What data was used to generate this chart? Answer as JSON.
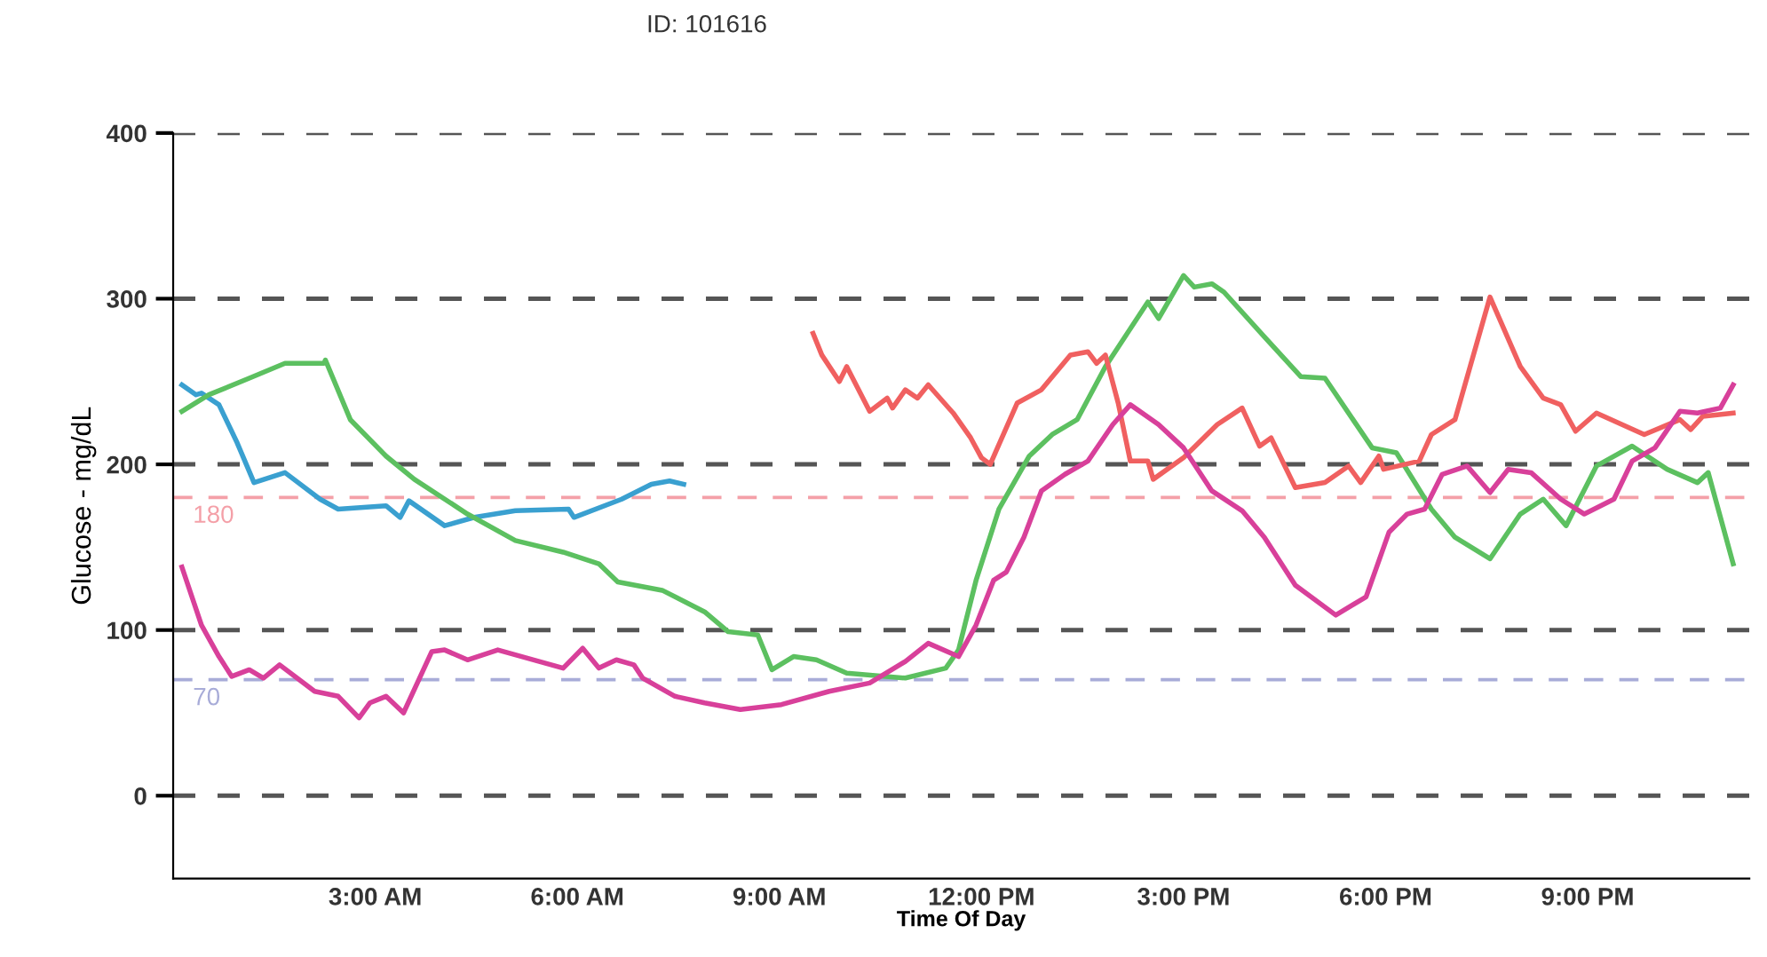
{
  "chart_data": {
    "type": "line",
    "xlabel": "Time Of Day",
    "ylabel": "Glucose - mg/dL",
    "annotations": [
      "ID: 101616"
    ],
    "xlim": [
      0,
      23.4
    ],
    "ylim": [
      -50,
      400
    ],
    "xticks": [
      {
        "value": 3,
        "label": "3:00 AM"
      },
      {
        "value": 6,
        "label": "6:00 AM"
      },
      {
        "value": 9,
        "label": "9:00 AM"
      },
      {
        "value": 12,
        "label": "12:00 PM"
      },
      {
        "value": 15,
        "label": "3:00 PM"
      },
      {
        "value": 18,
        "label": "6:00 PM"
      },
      {
        "value": 21,
        "label": "9:00 PM"
      }
    ],
    "yticks": [
      0,
      100,
      200,
      300,
      400
    ],
    "grid": "y",
    "legend": false,
    "marker": "none",
    "line_style": "solid",
    "ref_lines": [
      {
        "axis": "y",
        "value": 180,
        "label": "180",
        "color": "#f4a0a8",
        "line_style": "dashed"
      },
      {
        "axis": "y",
        "value": 70,
        "label": "70",
        "color": "#a8acd8",
        "line_style": "dashed"
      }
    ],
    "series": [
      {
        "color": "#3aa0d0",
        "x": [
          0.13,
          0.34,
          0.42,
          0.68,
          0.95,
          1.2,
          1.66,
          2.18,
          2.45,
          3.16,
          3.37,
          3.5,
          4.03,
          4.47,
          5.08,
          5.87,
          5.95,
          6.66,
          7.1,
          7.37,
          7.58
        ],
        "values": [
          248,
          242,
          243,
          236,
          213,
          189,
          195,
          179,
          173,
          175,
          168,
          178,
          163,
          168,
          172,
          173,
          168,
          179,
          188,
          190,
          188
        ]
      },
      {
        "color": "#5cc060",
        "x": [
          0.13,
          0.53,
          1.13,
          1.66,
          2.24,
          2.26,
          2.63,
          3.16,
          3.58,
          4.37,
          5.08,
          5.79,
          6.32,
          6.6,
          7.26,
          7.89,
          8.24,
          8.68,
          8.89,
          9.21,
          9.55,
          10.0,
          10.87,
          11.47,
          11.66,
          11.92,
          12.26,
          12.71,
          13.05,
          13.42,
          13.84,
          14.47,
          14.63,
          15.0,
          15.16,
          15.42,
          15.6,
          16.2,
          16.74,
          17.1,
          17.8,
          18.16,
          18.68,
          19.03,
          19.55,
          20.0,
          20.34,
          20.68,
          21.13,
          21.66,
          22.18,
          22.63,
          22.79,
          23.16
        ],
        "values": [
          232,
          242,
          252,
          261,
          261,
          263,
          227,
          205,
          191,
          170,
          154,
          147,
          140,
          129,
          124,
          111,
          99,
          97,
          76,
          84,
          82,
          74,
          71,
          77,
          88,
          130,
          173,
          205,
          218,
          227,
          259,
          298,
          288,
          314,
          307,
          309,
          304,
          277,
          253,
          252,
          210,
          207,
          173,
          156,
          143,
          170,
          179,
          163,
          199,
          211,
          197,
          189,
          195,
          140
        ]
      },
      {
        "color": "#f06060",
        "x": [
          9.5,
          9.63,
          9.89,
          10.0,
          10.34,
          10.6,
          10.68,
          10.87,
          11.05,
          11.21,
          11.58,
          11.84,
          12.0,
          12.13,
          12.53,
          12.89,
          13.32,
          13.58,
          13.71,
          13.84,
          14.03,
          14.21,
          14.47,
          14.55,
          15.0,
          15.5,
          15.87,
          16.13,
          16.3,
          16.66,
          17.1,
          17.45,
          17.63,
          17.9,
          17.97,
          18.5,
          18.68,
          19.03,
          19.55,
          20.0,
          20.34,
          20.6,
          20.82,
          21.13,
          21.84,
          22.37,
          22.53,
          22.71,
          23.16
        ],
        "values": [
          279,
          266,
          250,
          259,
          232,
          240,
          234,
          245,
          240,
          248,
          231,
          216,
          204,
          200,
          237,
          245,
          266,
          268,
          261,
          266,
          237,
          202,
          202,
          191,
          204,
          224,
          234,
          211,
          216,
          186,
          189,
          199,
          189,
          205,
          197,
          202,
          218,
          227,
          301,
          259,
          240,
          236,
          220,
          231,
          218,
          227,
          221,
          229,
          231
        ]
      },
      {
        "color": "#d8409a",
        "x": [
          0.13,
          0.42,
          0.68,
          0.87,
          1.13,
          1.34,
          1.58,
          2.1,
          2.45,
          2.76,
          2.92,
          3.16,
          3.42,
          3.84,
          4.03,
          4.37,
          4.82,
          5.79,
          6.08,
          6.32,
          6.58,
          6.84,
          6.97,
          7.45,
          7.89,
          8.42,
          9.03,
          9.74,
          10.34,
          10.87,
          11.21,
          11.66,
          11.92,
          12.18,
          12.37,
          12.63,
          12.89,
          13.24,
          13.58,
          13.95,
          14.21,
          14.63,
          15.0,
          15.42,
          15.87,
          16.2,
          16.66,
          17.26,
          17.71,
          18.05,
          18.32,
          18.58,
          18.84,
          19.21,
          19.55,
          19.82,
          20.16,
          20.6,
          20.95,
          21.39,
          21.66,
          22.0,
          22.37,
          22.63,
          22.97,
          23.16
        ],
        "values": [
          138,
          103,
          84,
          72,
          76,
          71,
          79,
          63,
          60,
          47,
          56,
          60,
          50,
          87,
          88,
          82,
          88,
          77,
          89,
          77,
          82,
          79,
          71,
          60,
          56,
          52,
          55,
          63,
          68,
          81,
          92,
          84,
          103,
          130,
          135,
          156,
          184,
          194,
          202,
          224,
          236,
          224,
          210,
          184,
          172,
          156,
          127,
          109,
          120,
          159,
          170,
          173,
          194,
          199,
          183,
          197,
          195,
          179,
          170,
          179,
          202,
          210,
          232,
          231,
          234,
          248
        ]
      }
    ]
  }
}
